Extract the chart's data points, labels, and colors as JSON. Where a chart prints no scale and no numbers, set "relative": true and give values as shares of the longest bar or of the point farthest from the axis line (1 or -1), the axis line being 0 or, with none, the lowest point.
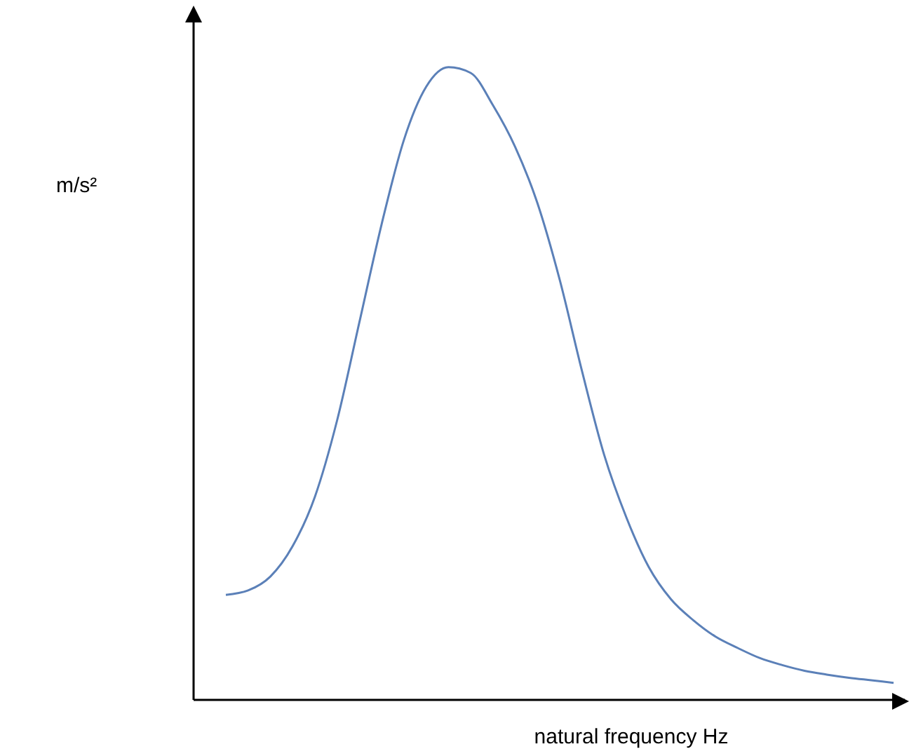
{
  "chart_data": {
    "type": "line",
    "xlabel": "natural frequency Hz",
    "ylabel": "m/s²",
    "relative": true,
    "marker": "none",
    "line_style": "solid",
    "categories": [
      null,
      null,
      null,
      null,
      null,
      null,
      null,
      null,
      null,
      null,
      null,
      null,
      null,
      null,
      null,
      null,
      null,
      null,
      null,
      null,
      null,
      null,
      null,
      null,
      null,
      null,
      null,
      null,
      null,
      null,
      null
    ],
    "series": [
      {
        "color": "#5b80b8",
        "values": [
          0.166,
          0.173,
          0.195,
          0.243,
          0.321,
          0.442,
          0.597,
          0.752,
          0.885,
          0.969,
          1,
          0.991,
          0.94,
          0.874,
          0.785,
          0.664,
          0.52,
          0.387,
          0.288,
          0.21,
          0.159,
          0.126,
          0.1,
          0.082,
          0.066,
          0.055,
          0.046,
          0.04,
          0.035,
          0.031,
          0.027
        ]
      }
    ]
  }
}
